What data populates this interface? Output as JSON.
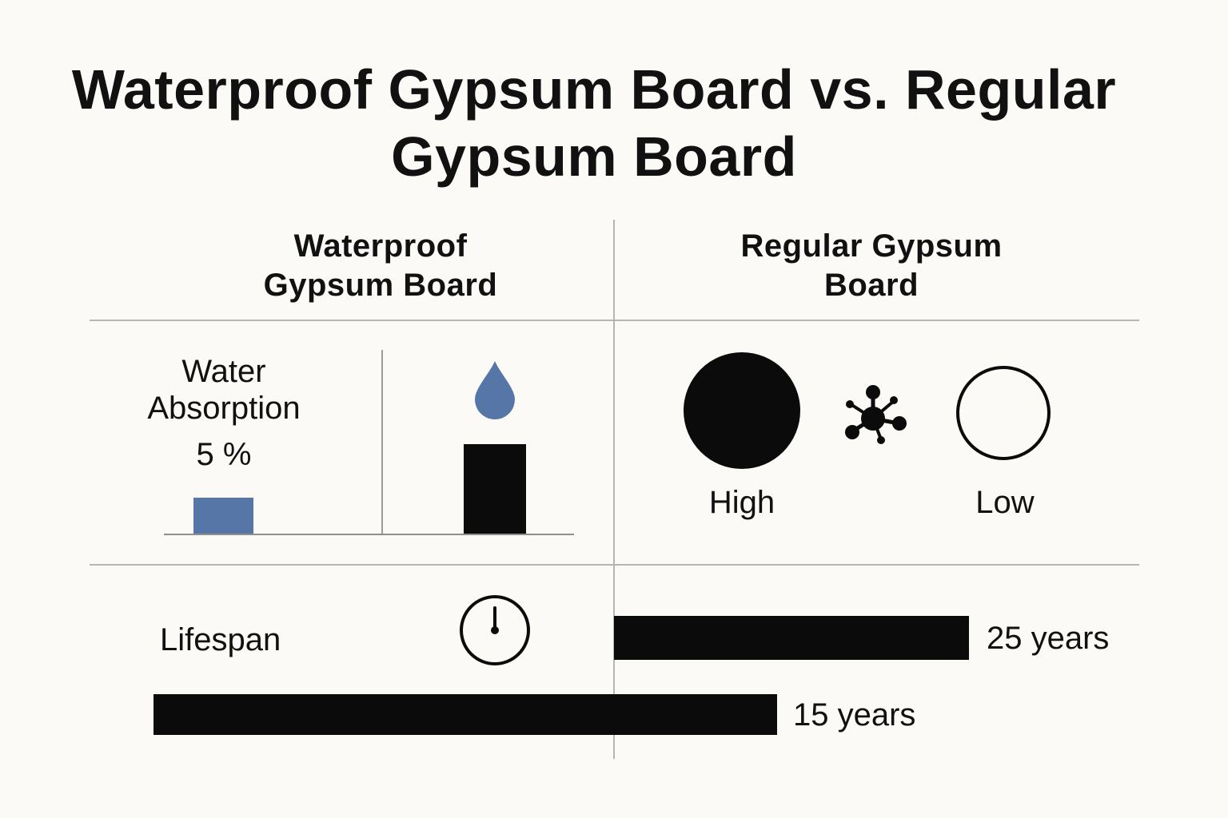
{
  "title": "Waterproof Gypsum Board vs. Regular Gypsum Board",
  "columns": {
    "left": "Waterproof Gypsum Board",
    "right": "Regular Gypsum Board"
  },
  "water_absorption": {
    "label": "Water Absorption",
    "value_text": "5 %"
  },
  "moisture": {
    "high_label": "High",
    "low_label": "Low"
  },
  "lifespan": {
    "label": "Lifespan",
    "regular": {
      "years": 25,
      "text": "25 years"
    },
    "waterproof": {
      "years": 15,
      "text": "15 years"
    }
  },
  "colors": {
    "accent_blue": "#5576a6",
    "bar_black": "#0b0b0b",
    "divider": "#b5b5b5",
    "background": "#fbfaf6"
  },
  "icons": [
    "water-drop-icon",
    "molecule-icon",
    "clock-icon"
  ]
}
